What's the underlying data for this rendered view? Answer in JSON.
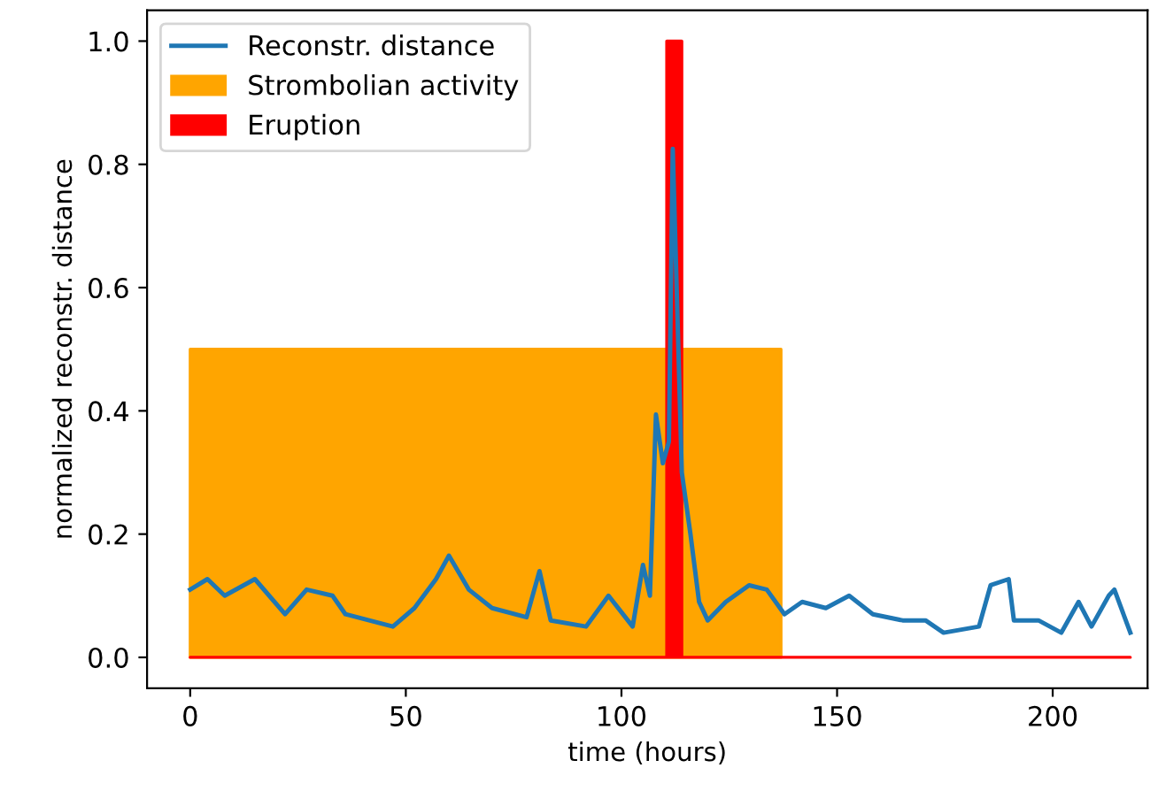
{
  "chart_data": {
    "type": "line",
    "xlabel": "time (hours)",
    "ylabel": "normalized reconstr. distance",
    "xlim": [
      -10,
      222
    ],
    "xticks": [
      0,
      50,
      100,
      150,
      200
    ],
    "ylim": [
      -0.05,
      1.05
    ],
    "yticks": [
      {
        "value": 0,
        "label": "0.0"
      },
      0.2,
      0.4,
      0.6,
      0.8,
      {
        "value": 1,
        "label": "1.0"
      }
    ],
    "grid": false,
    "legend": "top left",
    "series": [
      {
        "name": "Reconstr. distance",
        "color": "#1f77b4",
        "x": [
          0,
          4,
          8,
          15,
          22,
          27,
          33,
          36,
          47,
          52,
          57,
          60,
          64.6,
          70,
          78,
          81,
          83.6,
          91.8,
          97,
          102.6,
          105,
          106.6,
          108,
          109.6,
          111,
          111.9,
          114,
          116,
          118,
          120,
          124.2,
          129.6,
          133.7,
          137.8,
          141.9,
          147.4,
          152.8,
          158.3,
          165.2,
          170.5,
          174.7,
          182.9,
          185.6,
          189.8,
          191,
          196.7,
          202,
          206,
          209,
          213,
          214.3,
          218
        ],
        "values": [
          0.11,
          0.127,
          0.1,
          0.127,
          0.07,
          0.11,
          0.1,
          0.07,
          0.05,
          0.08,
          0.127,
          0.165,
          0.11,
          0.08,
          0.065,
          0.14,
          0.06,
          0.05,
          0.1,
          0.05,
          0.15,
          0.1,
          0.394,
          0.315,
          0.35,
          0.825,
          0.3,
          0.2,
          0.09,
          0.06,
          0.09,
          0.117,
          0.11,
          0.07,
          0.09,
          0.08,
          0.1,
          0.07,
          0.06,
          0.06,
          0.04,
          0.05,
          0.117,
          0.127,
          0.06,
          0.06,
          0.04,
          0.09,
          0.05,
          0.1,
          0.11,
          0.04
        ]
      },
      {
        "name": "Strombolian activity",
        "type": "area",
        "color": "#ffa500",
        "x": [
          0,
          137
        ],
        "values": [
          0.5,
          0.5
        ]
      },
      {
        "name": "Eruption",
        "type": "area",
        "color": "#ff0000",
        "x": [
          0,
          110.5,
          110.5,
          114,
          114,
          218
        ],
        "values": [
          0,
          0,
          1.0,
          1.0,
          0,
          0
        ]
      }
    ]
  }
}
